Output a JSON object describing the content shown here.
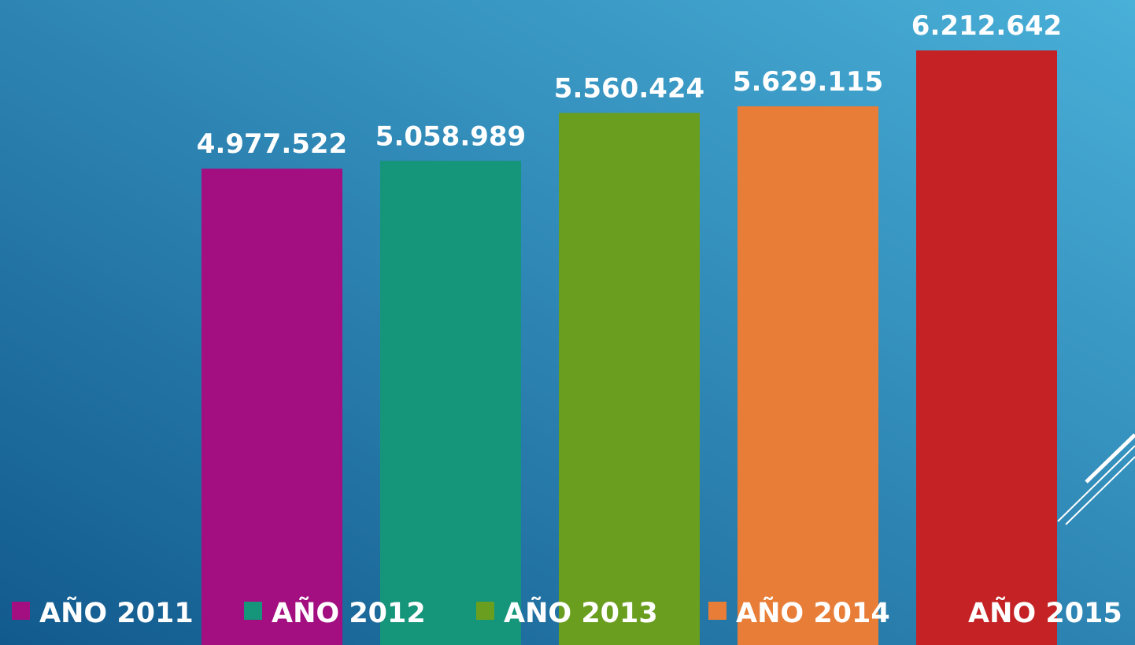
{
  "chart_data": {
    "type": "bar",
    "series": [
      {
        "name": "AÑO 2011",
        "color": "#a30e80",
        "values": [
          4977522
        ],
        "value_labels": [
          "4.977.522"
        ]
      },
      {
        "name": "AÑO 2012",
        "color": "#15957a",
        "values": [
          5058989
        ],
        "value_labels": [
          "5.058.989"
        ]
      },
      {
        "name": "AÑO 2013",
        "color": "#6a9e1f",
        "values": [
          5560424
        ],
        "value_labels": [
          "5.560.424"
        ]
      },
      {
        "name": "AÑO 2014",
        "color": "#e87d37",
        "values": [
          5629115
        ],
        "value_labels": [
          "5.629.115"
        ]
      },
      {
        "name": "AÑO 2015",
        "color": "#c42224",
        "values": [
          6212642
        ],
        "value_labels": [
          "6.212.642"
        ]
      }
    ],
    "ylim": [
      0,
      6740000
    ],
    "legend": "bottom"
  }
}
